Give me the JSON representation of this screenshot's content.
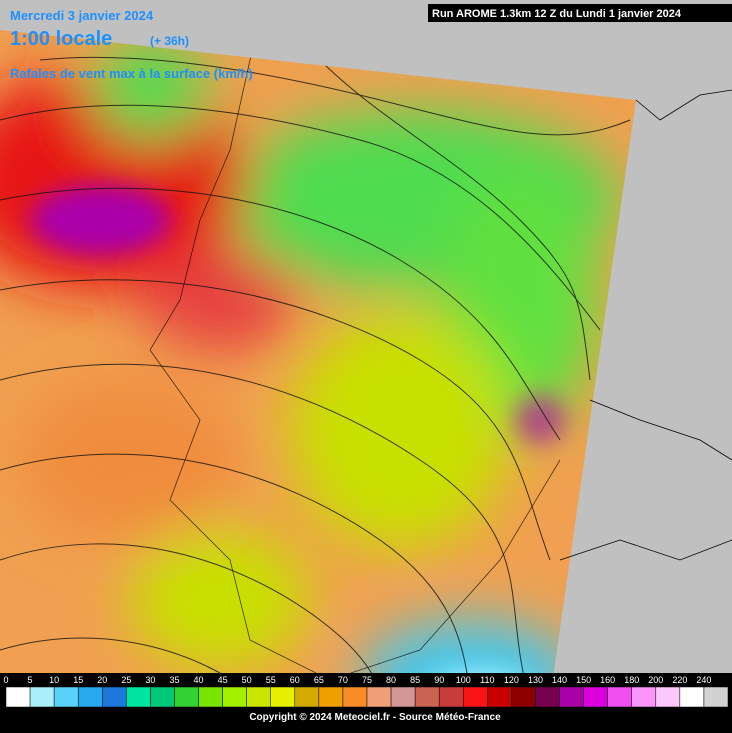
{
  "header": {
    "date": "Mercredi 3 janvier 2024",
    "local_time": "1:00 locale",
    "lead": "(+ 36h)",
    "parameter": "Rafales de vent max à la surface (km/h)",
    "run": "Run AROME 1.3km 12 Z du Lundi 1 janvier 2024"
  },
  "legend": {
    "values": [
      0,
      5,
      10,
      15,
      20,
      25,
      30,
      35,
      40,
      45,
      50,
      55,
      60,
      65,
      70,
      75,
      80,
      85,
      90,
      100,
      110,
      120,
      130,
      140,
      150,
      160,
      180,
      200,
      220,
      240
    ],
    "colors": [
      "#ffffff",
      "#aaeefa",
      "#5ad2fa",
      "#28aaf0",
      "#1e78dc",
      "#00e6a0",
      "#00c878",
      "#32d232",
      "#78e600",
      "#a0f000",
      "#c8e600",
      "#e6f000",
      "#d2aa00",
      "#f0a000",
      "#fa8c28",
      "#f0a078",
      "#d29696",
      "#c86450",
      "#c83c3c",
      "#fa1414",
      "#c80000",
      "#8c0000",
      "#780050",
      "#aa00aa",
      "#dc00dc",
      "#f050f0",
      "#fa96fa",
      "#fac8fa",
      "#ffffff",
      "#d2d2d2"
    ]
  },
  "footer": {
    "copyright": "Copyright © 2024 Meteociel.fr - Source Météo-France"
  }
}
